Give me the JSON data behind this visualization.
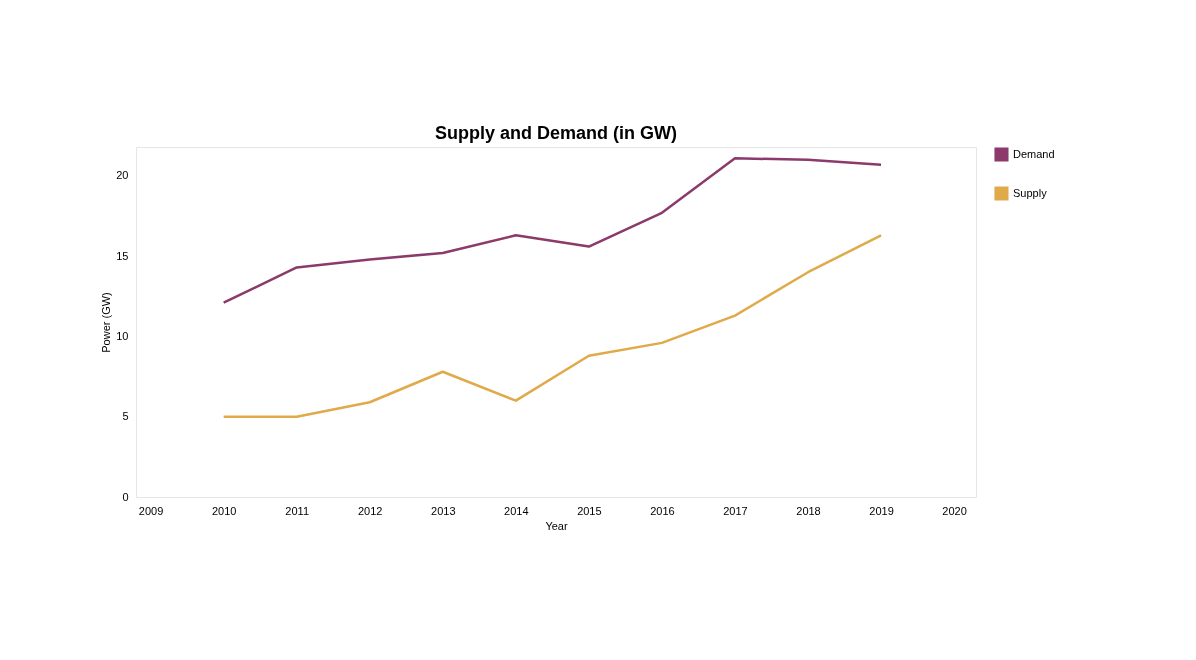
{
  "chart_data": {
    "type": "line",
    "title": "Supply and Demand (in GW)",
    "xlabel": "Year",
    "ylabel": "Power (GW)",
    "x": [
      2010,
      2011,
      2012,
      2013,
      2014,
      2015,
      2016,
      2017,
      2018,
      2019
    ],
    "series": [
      {
        "name": "Demand",
        "color": "#8b3a6b",
        "values": [
          12.1,
          14.3,
          14.8,
          15.2,
          16.3,
          15.6,
          17.7,
          21.1,
          21.0,
          20.7
        ]
      },
      {
        "name": "Supply",
        "color": "#e0a94a",
        "values": [
          5.0,
          5.0,
          5.9,
          7.8,
          6.0,
          8.8,
          9.6,
          11.3,
          14.0,
          16.3
        ]
      }
    ],
    "xlim": [
      2008.8,
      2020.3
    ],
    "xticks": [
      2009,
      2010,
      2011,
      2012,
      2013,
      2014,
      2015,
      2016,
      2017,
      2018,
      2019,
      2020
    ],
    "ylim": [
      0,
      21.8
    ],
    "yticks": [
      0,
      5,
      10,
      15,
      20
    ],
    "grid": false,
    "legend": "top right",
    "marker": "none",
    "line_style": "solid"
  }
}
